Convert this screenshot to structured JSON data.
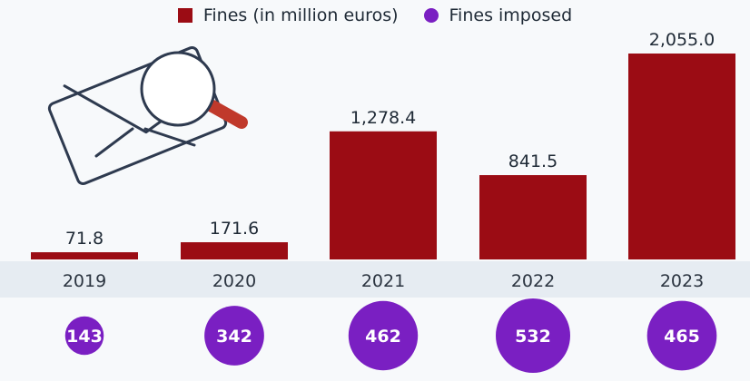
{
  "legend": {
    "fines_label": "Fines (in million euros)",
    "count_label": "Fines imposed"
  },
  "colors": {
    "bar": "#9b0c14",
    "bubble": "#7a1fc2",
    "year_band": "#e6ecf2",
    "icon_stroke": "#2e3a4f",
    "icon_handle": "#c0392b"
  },
  "icon": "envelope-magnifier-icon",
  "chart_data": {
    "type": "bar",
    "categories": [
      "2019",
      "2020",
      "2021",
      "2022",
      "2023"
    ],
    "series": [
      {
        "name": "Fines (in million euros)",
        "values": [
          71.8,
          171.6,
          1278.4,
          841.5,
          2055.0
        ],
        "labels": [
          "71.8",
          "171.6",
          "1,278.4",
          "841.5",
          "2,055.0"
        ]
      },
      {
        "name": "Fines imposed",
        "values": [
          143,
          342,
          462,
          532,
          465
        ],
        "labels": [
          "143",
          "342",
          "462",
          "532",
          "465"
        ],
        "display": "bubble"
      }
    ],
    "ylim": [
      0,
      2055.0
    ],
    "grid": false,
    "legend_position": "top-center"
  }
}
